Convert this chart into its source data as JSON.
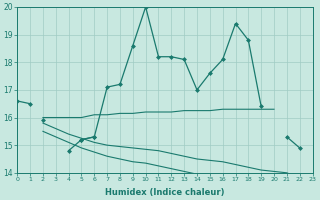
{
  "xlabel": "Humidex (Indice chaleur)",
  "x": [
    0,
    1,
    2,
    3,
    4,
    5,
    6,
    7,
    8,
    9,
    10,
    11,
    12,
    13,
    14,
    15,
    16,
    17,
    18,
    19,
    20,
    21,
    22,
    23
  ],
  "line_main": [
    16.6,
    16.5,
    null,
    null,
    null,
    15.2,
    15.3,
    17.1,
    17.2,
    18.6,
    20.0,
    18.2,
    18.2,
    18.1,
    17.0,
    17.6,
    18.1,
    19.4,
    18.8,
    16.4,
    null,
    15.3,
    14.9,
    null
  ],
  "line_short": [
    null,
    null,
    15.9,
    null,
    14.8,
    15.2,
    15.3,
    null,
    null,
    null,
    null,
    null,
    null,
    null,
    null,
    null,
    null,
    null,
    null,
    null,
    null,
    null,
    null,
    null
  ],
  "line_flat1": [
    null,
    null,
    16.0,
    16.0,
    16.0,
    16.0,
    16.1,
    16.1,
    16.15,
    16.15,
    16.2,
    16.2,
    16.2,
    16.25,
    16.25,
    16.25,
    16.3,
    16.3,
    16.3,
    16.3,
    16.3,
    null,
    null,
    null
  ],
  "line_flat2": [
    null,
    null,
    15.8,
    15.6,
    15.4,
    15.25,
    15.1,
    15.0,
    14.95,
    14.9,
    14.85,
    14.8,
    14.7,
    14.6,
    14.5,
    14.45,
    14.4,
    14.3,
    14.2,
    14.1,
    14.05,
    14.0,
    13.8,
    13.7
  ],
  "line_decline": [
    null,
    null,
    15.5,
    15.3,
    15.1,
    14.9,
    14.75,
    14.6,
    14.5,
    14.4,
    14.35,
    14.25,
    14.15,
    14.05,
    13.95,
    13.85,
    13.75,
    13.65,
    13.55,
    13.5,
    13.45,
    13.4,
    13.35,
    13.3
  ],
  "ylim": [
    14,
    20
  ],
  "yticks": [
    14,
    15,
    16,
    17,
    18,
    19,
    20
  ],
  "xlim": [
    0,
    23
  ],
  "color": "#1a7a6e",
  "bg_color": "#c8e8e0",
  "grid_color": "#a0ccc4",
  "lw_main": 0.9,
  "lw_flat": 0.8,
  "ms": 2.5
}
